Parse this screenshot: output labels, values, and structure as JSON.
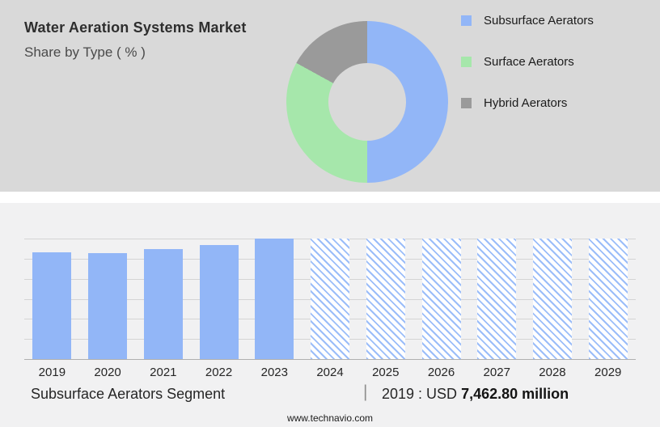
{
  "header": {
    "title": "Water Aeration Systems Market",
    "subtitle": "Share by Type ( % )"
  },
  "colors": {
    "accent_blue": "#92b6f7",
    "accent_green": "#a6e7ab",
    "accent_gray": "#9a9a9a",
    "top_background": "#d9d9d9",
    "lower_background": "#f1f1f2"
  },
  "chart_data": [
    {
      "type": "pie",
      "donut": true,
      "title": "Share by Type ( % )",
      "legend_position": "right",
      "segments": [
        {
          "label": "Subsurface Aerators",
          "percent": 50,
          "color": "#92b6f7"
        },
        {
          "label": "Surface Aerators",
          "percent": 33,
          "color": "#a6e7ab"
        },
        {
          "label": "Hybrid Aerators",
          "percent": 17,
          "color": "#9a9a9a"
        }
      ]
    },
    {
      "type": "bar",
      "title": "Subsurface Aerators Segment",
      "categories": [
        "2019",
        "2020",
        "2021",
        "2022",
        "2023",
        "2024",
        "2025",
        "2026",
        "2027",
        "2028",
        "2029"
      ],
      "values": [
        7462.8,
        7390,
        7660,
        7960,
        8400,
        null,
        null,
        null,
        null,
        null,
        null
      ],
      "forecast": [
        false,
        false,
        false,
        false,
        false,
        true,
        true,
        true,
        true,
        true,
        true
      ],
      "ylim": [
        0,
        8400
      ],
      "grid": true,
      "annotation": "2019 : USD 7,462.80 million"
    }
  ],
  "caption": {
    "segment_label": "Subsurface Aerators Segment",
    "separator": "|",
    "value_prefix": "2019 : USD ",
    "value_bold": "7,462.80 million"
  },
  "footer": {
    "website": "www.technavio.com"
  }
}
